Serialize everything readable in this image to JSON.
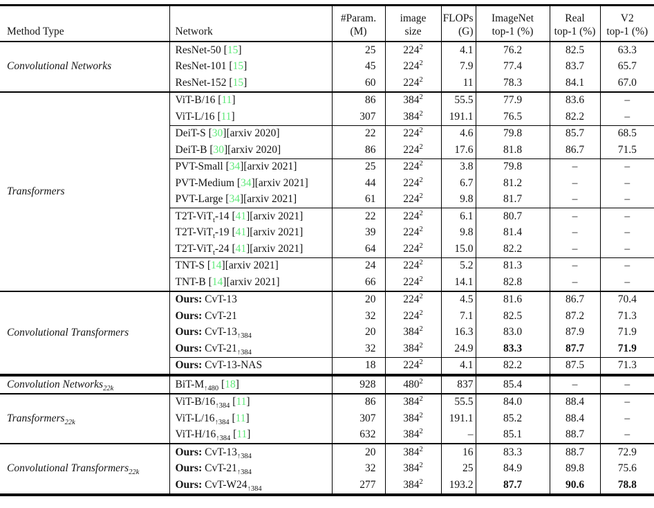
{
  "table": {
    "cite_color": "#5ee878",
    "dash": "–",
    "header": {
      "method_type": "Method Type",
      "network": "Network",
      "cols": [
        {
          "l1": "#Param.",
          "l2": "(M)"
        },
        {
          "l1": "image",
          "l2": "size"
        },
        {
          "l1": "FLOPs",
          "l2": "(G)"
        },
        {
          "l1": "ImageNet",
          "l2": "top-1 (%)"
        },
        {
          "l1": "Real",
          "l2": "top-1 (%)"
        },
        {
          "l1": "V2",
          "l2": "top-1 (%)"
        }
      ]
    },
    "sections": [
      {
        "method_type": [
          {
            "t": "text",
            "v": "Convolutional Networks"
          }
        ],
        "sep": "none",
        "blocks": [
          {
            "rows": [
              {
                "net": [
                  {
                    "t": "text",
                    "v": "ResNet-50 "
                  },
                  {
                    "t": "cite",
                    "v": "15"
                  }
                ],
                "p": "25",
                "s": "224",
                "f": "4.1",
                "i": "76.2",
                "r": "82.5",
                "v": "63.3"
              },
              {
                "net": [
                  {
                    "t": "text",
                    "v": "ResNet-101 "
                  },
                  {
                    "t": "cite",
                    "v": "15"
                  }
                ],
                "p": "45",
                "s": "224",
                "f": "7.9",
                "i": "77.4",
                "r": "83.7",
                "v": "65.7"
              },
              {
                "net": [
                  {
                    "t": "text",
                    "v": "ResNet-152 "
                  },
                  {
                    "t": "cite",
                    "v": "15"
                  }
                ],
                "p": "60",
                "s": "224",
                "f": "11",
                "i": "78.3",
                "r": "84.1",
                "v": "67.0"
              }
            ]
          }
        ]
      },
      {
        "method_type": [
          {
            "t": "text",
            "v": "Transformers"
          }
        ],
        "sep": "norm",
        "blocks": [
          {
            "rows": [
              {
                "net": [
                  {
                    "t": "text",
                    "v": "ViT-B/16 "
                  },
                  {
                    "t": "cite",
                    "v": "11"
                  }
                ],
                "p": "86",
                "s": "384",
                "f": "55.5",
                "i": "77.9",
                "r": "83.6",
                "v": "–"
              },
              {
                "net": [
                  {
                    "t": "text",
                    "v": "ViT-L/16 "
                  },
                  {
                    "t": "cite",
                    "v": "11"
                  }
                ],
                "p": "307",
                "s": "384",
                "f": "191.1",
                "i": "76.5",
                "r": "82.2",
                "v": "–"
              }
            ]
          },
          {
            "rows": [
              {
                "net": [
                  {
                    "t": "text",
                    "v": "DeiT-S "
                  },
                  {
                    "t": "cite",
                    "v": "30"
                  },
                  {
                    "t": "text",
                    "v": "[arxiv 2020]"
                  }
                ],
                "p": "22",
                "s": "224",
                "f": "4.6",
                "i": "79.8",
                "r": "85.7",
                "v": "68.5"
              },
              {
                "net": [
                  {
                    "t": "text",
                    "v": "DeiT-B "
                  },
                  {
                    "t": "cite",
                    "v": "30"
                  },
                  {
                    "t": "text",
                    "v": "[arxiv 2020]"
                  }
                ],
                "p": "86",
                "s": "224",
                "f": "17.6",
                "i": "81.8",
                "r": "86.7",
                "v": "71.5"
              }
            ]
          },
          {
            "rows": [
              {
                "net": [
                  {
                    "t": "text",
                    "v": "PVT-Small "
                  },
                  {
                    "t": "cite",
                    "v": "34"
                  },
                  {
                    "t": "text",
                    "v": "[arxiv 2021]"
                  }
                ],
                "p": "25",
                "s": "224",
                "f": "3.8",
                "i": "79.8",
                "r": "–",
                "v": "–"
              },
              {
                "net": [
                  {
                    "t": "text",
                    "v": "PVT-Medium "
                  },
                  {
                    "t": "cite",
                    "v": "34"
                  },
                  {
                    "t": "text",
                    "v": "[arxiv 2021]"
                  }
                ],
                "p": "44",
                "s": "224",
                "f": "6.7",
                "i": "81.2",
                "r": "–",
                "v": "–"
              },
              {
                "net": [
                  {
                    "t": "text",
                    "v": "PVT-Large "
                  },
                  {
                    "t": "cite",
                    "v": "34"
                  },
                  {
                    "t": "text",
                    "v": "[arxiv 2021]"
                  }
                ],
                "p": "61",
                "s": "224",
                "f": "9.8",
                "i": "81.7",
                "r": "–",
                "v": "–"
              }
            ]
          },
          {
            "rows": [
              {
                "net": [
                  {
                    "t": "text",
                    "v": "T2T-ViT"
                  },
                  {
                    "t": "sub",
                    "v": "t"
                  },
                  {
                    "t": "text",
                    "v": "-14 "
                  },
                  {
                    "t": "cite",
                    "v": "41"
                  },
                  {
                    "t": "text",
                    "v": "[arxiv 2021]"
                  }
                ],
                "p": "22",
                "s": "224",
                "f": "6.1",
                "i": "80.7",
                "r": "–",
                "v": "–"
              },
              {
                "net": [
                  {
                    "t": "text",
                    "v": "T2T-ViT"
                  },
                  {
                    "t": "sub",
                    "v": "t"
                  },
                  {
                    "t": "text",
                    "v": "-19 "
                  },
                  {
                    "t": "cite",
                    "v": "41"
                  },
                  {
                    "t": "text",
                    "v": "[arxiv 2021]"
                  }
                ],
                "p": "39",
                "s": "224",
                "f": "9.8",
                "i": "81.4",
                "r": "–",
                "v": "–"
              },
              {
                "net": [
                  {
                    "t": "text",
                    "v": "T2T-ViT"
                  },
                  {
                    "t": "sub",
                    "v": "t"
                  },
                  {
                    "t": "text",
                    "v": "-24 "
                  },
                  {
                    "t": "cite",
                    "v": "41"
                  },
                  {
                    "t": "text",
                    "v": "[arxiv 2021]"
                  }
                ],
                "p": "64",
                "s": "224",
                "f": "15.0",
                "i": "82.2",
                "r": "–",
                "v": "–"
              }
            ]
          },
          {
            "rows": [
              {
                "net": [
                  {
                    "t": "text",
                    "v": "TNT-S "
                  },
                  {
                    "t": "cite",
                    "v": "14"
                  },
                  {
                    "t": "text",
                    "v": "[arxiv 2021]"
                  }
                ],
                "p": "24",
                "s": "224",
                "f": "5.2",
                "i": "81.3",
                "r": "–",
                "v": "–"
              },
              {
                "net": [
                  {
                    "t": "text",
                    "v": "TNT-B "
                  },
                  {
                    "t": "cite",
                    "v": "14"
                  },
                  {
                    "t": "text",
                    "v": "[arxiv 2021]"
                  }
                ],
                "p": "66",
                "s": "224",
                "f": "14.1",
                "i": "82.8",
                "r": "–",
                "v": "–"
              }
            ]
          }
        ]
      },
      {
        "method_type": [
          {
            "t": "text",
            "v": "Convolutional Transformers"
          }
        ],
        "sep": "norm",
        "blocks": [
          {
            "rows": [
              {
                "net": [
                  {
                    "t": "bold",
                    "v": "Ours: "
                  },
                  {
                    "t": "text",
                    "v": "CvT-13"
                  }
                ],
                "p": "20",
                "s": "224",
                "f": "4.5",
                "i": "81.6",
                "r": "86.7",
                "v": "70.4"
              },
              {
                "net": [
                  {
                    "t": "bold",
                    "v": "Ours: "
                  },
                  {
                    "t": "text",
                    "v": "CvT-21"
                  }
                ],
                "p": "32",
                "s": "224",
                "f": "7.1",
                "i": "82.5",
                "r": "87.2",
                "v": "71.3"
              },
              {
                "net": [
                  {
                    "t": "bold",
                    "v": "Ours: "
                  },
                  {
                    "t": "text",
                    "v": "CvT-13"
                  },
                  {
                    "t": "sub",
                    "v": "↑384"
                  }
                ],
                "p": "20",
                "s": "384",
                "f": "16.3",
                "i": "83.0",
                "r": "87.9",
                "v": "71.9"
              },
              {
                "net": [
                  {
                    "t": "bold",
                    "v": "Ours: "
                  },
                  {
                    "t": "text",
                    "v": "CvT-21"
                  },
                  {
                    "t": "sub",
                    "v": "↑384"
                  }
                ],
                "p": "32",
                "s": "384",
                "f": "24.9",
                "i": "83.3",
                "r": "87.7",
                "v": "71.9",
                "b": [
                  "imagenet",
                  "real",
                  "v2"
                ]
              }
            ]
          },
          {
            "rows": [
              {
                "net": [
                  {
                    "t": "bold",
                    "v": "Ours: "
                  },
                  {
                    "t": "text",
                    "v": "CvT-13-NAS"
                  }
                ],
                "p": "18",
                "s": "224",
                "f": "4.1",
                "i": "82.2",
                "r": "87.5",
                "v": "71.3"
              }
            ]
          }
        ]
      },
      {
        "method_type": [
          {
            "t": "text",
            "v": "Convolution Networks"
          },
          {
            "t": "sub",
            "v": "22k"
          }
        ],
        "sep": "thick",
        "blocks": [
          {
            "rows": [
              {
                "net": [
                  {
                    "t": "text",
                    "v": "BiT-M"
                  },
                  {
                    "t": "sub",
                    "v": "↑480"
                  },
                  {
                    "t": "text",
                    "v": " "
                  },
                  {
                    "t": "cite",
                    "v": "18"
                  }
                ],
                "p": "928",
                "s": "480",
                "f": "837",
                "i": "85.4",
                "r": "–",
                "v": "–"
              }
            ]
          }
        ]
      },
      {
        "method_type": [
          {
            "t": "text",
            "v": "Transformers"
          },
          {
            "t": "sub",
            "v": "22k"
          }
        ],
        "sep": "norm",
        "blocks": [
          {
            "rows": [
              {
                "net": [
                  {
                    "t": "text",
                    "v": "ViT-B/16"
                  },
                  {
                    "t": "sub",
                    "v": "↑384"
                  },
                  {
                    "t": "text",
                    "v": " "
                  },
                  {
                    "t": "cite",
                    "v": "11"
                  }
                ],
                "p": "86",
                "s": "384",
                "f": "55.5",
                "i": "84.0",
                "r": "88.4",
                "v": "–"
              },
              {
                "net": [
                  {
                    "t": "text",
                    "v": "ViT-L/16"
                  },
                  {
                    "t": "sub",
                    "v": "↑384"
                  },
                  {
                    "t": "text",
                    "v": " "
                  },
                  {
                    "t": "cite",
                    "v": "11"
                  }
                ],
                "p": "307",
                "s": "384",
                "f": "191.1",
                "i": "85.2",
                "r": "88.4",
                "v": "–"
              },
              {
                "net": [
                  {
                    "t": "text",
                    "v": "ViT-H/16"
                  },
                  {
                    "t": "sub",
                    "v": "↑384"
                  },
                  {
                    "t": "text",
                    "v": " "
                  },
                  {
                    "t": "cite",
                    "v": "11"
                  }
                ],
                "p": "632",
                "s": "384",
                "f": "–",
                "i": "85.1",
                "r": "88.7",
                "v": "–"
              }
            ]
          }
        ]
      },
      {
        "method_type": [
          {
            "t": "text",
            "v": "Convolutional Transformers"
          },
          {
            "t": "sub",
            "v": "22k"
          }
        ],
        "sep": "norm",
        "blocks": [
          {
            "rows": [
              {
                "net": [
                  {
                    "t": "bold",
                    "v": "Ours: "
                  },
                  {
                    "t": "text",
                    "v": "CvT-13"
                  },
                  {
                    "t": "sub",
                    "v": "↑384"
                  }
                ],
                "p": "20",
                "s": "384",
                "f": "16",
                "i": "83.3",
                "r": "88.7",
                "v": "72.9"
              },
              {
                "net": [
                  {
                    "t": "bold",
                    "v": "Ours: "
                  },
                  {
                    "t": "text",
                    "v": "CvT-21"
                  },
                  {
                    "t": "sub",
                    "v": "↑384"
                  }
                ],
                "p": "32",
                "s": "384",
                "f": "25",
                "i": "84.9",
                "r": "89.8",
                "v": "75.6"
              },
              {
                "net": [
                  {
                    "t": "bold",
                    "v": "Ours: "
                  },
                  {
                    "t": "text",
                    "v": "CvT-W24"
                  },
                  {
                    "t": "sub",
                    "v": "↑384"
                  }
                ],
                "p": "277",
                "s": "384",
                "f": "193.2",
                "i": "87.7",
                "r": "90.6",
                "v": "78.8",
                "b": [
                  "imagenet",
                  "real",
                  "v2"
                ]
              }
            ]
          }
        ]
      }
    ]
  }
}
